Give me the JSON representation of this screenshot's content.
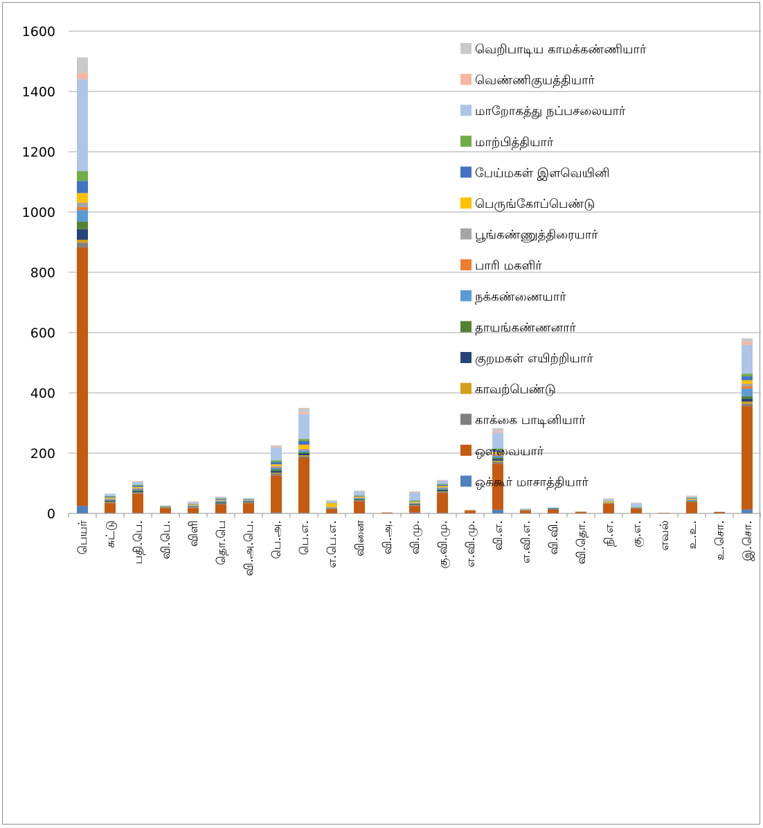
{
  "chart_data": {
    "type": "bar",
    "stacked": true,
    "ylim": [
      0,
      1600
    ],
    "yticks": [
      0,
      200,
      400,
      600,
      800,
      1000,
      1200,
      1400,
      1600
    ],
    "grid": true,
    "legend_position": "top-right",
    "categories": [
      "பெயர்",
      "சுட்டு",
      "பதி.பெ.",
      "வி.பெ.",
      "விளி",
      "தொ.பெ",
      "வி.அ.பெ.",
      "பெ.அ.",
      "பெ.எ.",
      "எ.பெ.எ.",
      "வினை",
      "வி.அ.",
      "வி.மு.",
      "கு.வி.மு.",
      "எ.வி.மு.",
      "வி.எ.",
      "எ.வி.எ.",
      "வி.வி.",
      "வி.தொ.",
      "நி.எ.",
      "கு.எ.",
      "எவல்",
      "உ.உ.",
      "உ.சொ.",
      "இ.சொ."
    ],
    "series": [
      {
        "name": "ஒக்கூர்  மாசாத்தியார்",
        "color": "#4f81bd",
        "values": [
          25,
          2,
          2,
          1,
          1,
          1,
          1,
          3,
          2,
          1,
          1,
          0,
          3,
          2,
          0,
          12,
          0,
          0,
          0,
          1,
          0,
          0,
          1,
          0,
          13
        ]
      },
      {
        "name": "ஔவையார்",
        "color": "#c55a11",
        "values": [
          858,
          32,
          63,
          17,
          17,
          29,
          33,
          123,
          183,
          13,
          40,
          3,
          22,
          66,
          9,
          153,
          9,
          13,
          5,
          32,
          16,
          2,
          36,
          5,
          343
        ]
      },
      {
        "name": "காக்கை பாடினியார்",
        "color": "#7f7f7f",
        "values": [
          15,
          3,
          3,
          1,
          2,
          2,
          2,
          6,
          5,
          2,
          2,
          0,
          2,
          3,
          1,
          6,
          1,
          1,
          0,
          1,
          1,
          0,
          1,
          0,
          8
        ]
      },
      {
        "name": "காவற்பெண்டு",
        "color": "#d4a017",
        "values": [
          10,
          2,
          2,
          0,
          1,
          1,
          1,
          3,
          3,
          1,
          1,
          0,
          1,
          2,
          1,
          4,
          1,
          0,
          1,
          1,
          0,
          0,
          1,
          0,
          7
        ]
      },
      {
        "name": "குறமகள் எயிற்றியார்",
        "color": "#264478",
        "values": [
          35,
          3,
          4,
          1,
          1,
          3,
          2,
          6,
          6,
          1,
          2,
          0,
          2,
          4,
          0,
          6,
          1,
          1,
          0,
          0,
          1,
          0,
          1,
          0,
          10
        ]
      },
      {
        "name": "தாயங்கண்ணனார்",
        "color": "#548235",
        "values": [
          25,
          2,
          3,
          1,
          1,
          2,
          1,
          5,
          4,
          1,
          2,
          0,
          2,
          3,
          0,
          4,
          0,
          1,
          0,
          1,
          0,
          0,
          2,
          0,
          8
        ]
      },
      {
        "name": "நக்கண்ணையார்",
        "color": "#5b9bd5",
        "values": [
          38,
          3,
          4,
          1,
          2,
          3,
          2,
          6,
          6,
          1,
          3,
          0,
          2,
          4,
          0,
          6,
          1,
          1,
          0,
          1,
          1,
          0,
          2,
          0,
          25
        ]
      },
      {
        "name": "பாரி மகளிர்",
        "color": "#ed7d31",
        "values": [
          10,
          1,
          2,
          0,
          1,
          1,
          1,
          2,
          2,
          1,
          1,
          0,
          1,
          1,
          0,
          3,
          0,
          0,
          0,
          0,
          0,
          0,
          1,
          0,
          8
        ]
      },
      {
        "name": "பூங்கண்ணுத்திரையார்",
        "color": "#a5a5a5",
        "values": [
          15,
          2,
          2,
          0,
          1,
          1,
          1,
          3,
          3,
          1,
          1,
          0,
          1,
          2,
          0,
          4,
          0,
          0,
          0,
          0,
          0,
          0,
          1,
          0,
          8
        ]
      },
      {
        "name": "பெருங்கோப்பெண்டு",
        "color": "#ffc000",
        "values": [
          32,
          3,
          3,
          1,
          2,
          2,
          1,
          6,
          14,
          12,
          3,
          0,
          3,
          4,
          1,
          6,
          1,
          0,
          0,
          3,
          1,
          0,
          2,
          0,
          12
        ]
      },
      {
        "name": "பேய்மகள் இளவெயினி",
        "color": "#4472c4",
        "values": [
          40,
          3,
          4,
          1,
          1,
          3,
          2,
          7,
          12,
          1,
          2,
          0,
          2,
          4,
          0,
          6,
          1,
          1,
          0,
          1,
          1,
          0,
          2,
          0,
          13
        ]
      },
      {
        "name": "மாற்பித்தியார்",
        "color": "#70ad47",
        "values": [
          33,
          2,
          3,
          1,
          1,
          2,
          1,
          6,
          7,
          1,
          2,
          0,
          2,
          3,
          0,
          5,
          0,
          1,
          0,
          1,
          1,
          0,
          2,
          0,
          9
        ]
      },
      {
        "name": "மாறோகத்து நப்பசலையார்",
        "color": "#adc6e8",
        "values": [
          305,
          6,
          9,
          1,
          5,
          3,
          2,
          43,
          82,
          5,
          14,
          0,
          26,
          10,
          0,
          53,
          0,
          1,
          1,
          6,
          12,
          0,
          3,
          1,
          95
        ]
      },
      {
        "name": "வெண்ணிகுயத்தியார்",
        "color": "#f4b6a0",
        "values": [
          20,
          1,
          2,
          0,
          2,
          1,
          0,
          3,
          6,
          1,
          1,
          0,
          2,
          1,
          0,
          4,
          0,
          0,
          0,
          1,
          1,
          0,
          1,
          0,
          10
        ]
      },
      {
        "name": "வெறிபாடிய காமக்கண்ணியார்",
        "color": "#c9c9c9",
        "values": [
          52,
          1,
          2,
          0,
          2,
          2,
          1,
          4,
          15,
          2,
          1,
          0,
          2,
          2,
          0,
          11,
          0,
          0,
          0,
          1,
          1,
          0,
          3,
          0,
          12
        ]
      }
    ]
  }
}
